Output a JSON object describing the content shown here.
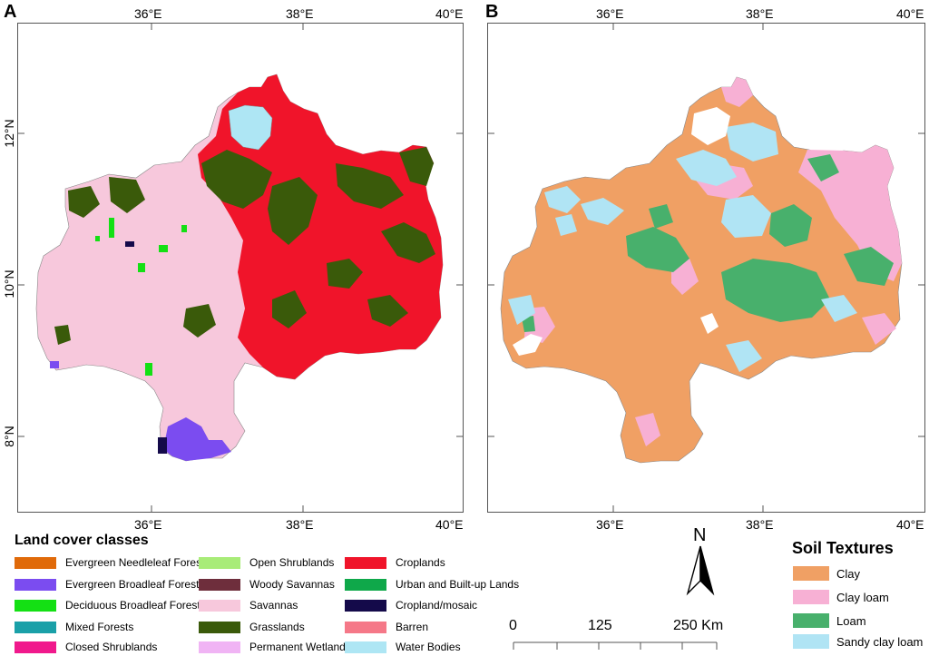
{
  "panel_a": {
    "letter": "A",
    "top_ticks": [
      "36°E",
      "38°E",
      "40°E"
    ],
    "bottom_ticks": [
      "36°E",
      "38°E",
      "40°E"
    ],
    "left_ticks": [
      "12°N",
      "10°N",
      "8°N"
    ]
  },
  "panel_b": {
    "letter": "B",
    "top_ticks": [
      "36°E",
      "38°E",
      "40°E"
    ],
    "bottom_ticks": [
      "36°E",
      "38°E",
      "40°E"
    ]
  },
  "land_cover_legend": {
    "title": "Land cover classes",
    "items": [
      {
        "label": "Evergreen Needleleaf Forests",
        "color": "#e06a0a"
      },
      {
        "label": "Evergreen Broadleaf Forests",
        "color": "#7b4cf0"
      },
      {
        "label": "Deciduous Broadleaf Forests",
        "color": "#14e014"
      },
      {
        "label": "Mixed Forests",
        "color": "#1aa0a8"
      },
      {
        "label": "Closed Shrublands",
        "color": "#f0198c"
      },
      {
        "label": "Open Shrublands",
        "color": "#a8ec78"
      },
      {
        "label": "Woody Savannas",
        "color": "#6e2e3c"
      },
      {
        "label": "Savannas",
        "color": "#f7c8dc"
      },
      {
        "label": "Grasslands",
        "color": "#3a5a0a"
      },
      {
        "label": "Permanent Wetlands",
        "color": "#f0b4f4"
      },
      {
        "label": "Croplands",
        "color": "#f0142a"
      },
      {
        "label": "Urban and Built-up Lands",
        "color": "#0fa84a"
      },
      {
        "label": "Cropland/mosaic",
        "color": "#140a4a"
      },
      {
        "label": "Barren",
        "color": "#f57888"
      },
      {
        "label": "Water Bodies",
        "color": "#aee6f4"
      }
    ]
  },
  "soil_legend": {
    "title": "Soil Textures",
    "items": [
      {
        "label": "Clay",
        "color": "#f0a064"
      },
      {
        "label": "Clay loam",
        "color": "#f7b0d4"
      },
      {
        "label": "Loam",
        "color": "#48b06c"
      },
      {
        "label": "Sandy clay loam",
        "color": "#b0e4f4"
      }
    ]
  },
  "north_arrow": {
    "label": "N"
  },
  "scale_bar": {
    "labels": [
      "0",
      "125",
      "250 Km"
    ]
  }
}
